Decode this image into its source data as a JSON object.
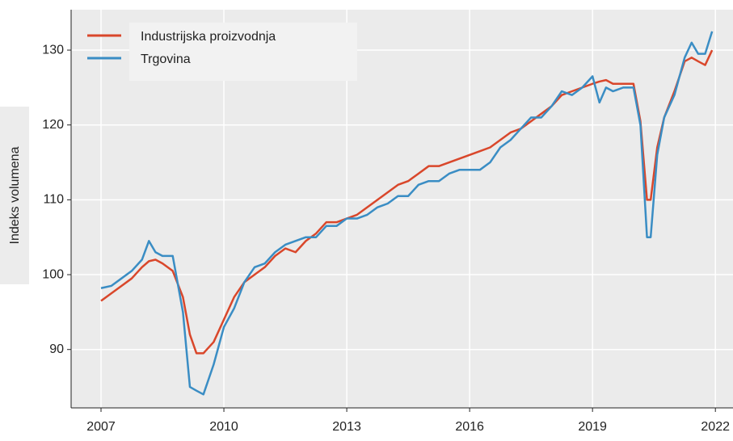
{
  "chart_data": {
    "type": "line",
    "y_label": "Indeks volumena",
    "x": [
      2007,
      2007.25,
      2007.5,
      2007.75,
      2008,
      2008.17,
      2008.33,
      2008.5,
      2008.75,
      2009,
      2009.17,
      2009.33,
      2009.5,
      2009.75,
      2010,
      2010.25,
      2010.5,
      2010.75,
      2011,
      2011.25,
      2011.5,
      2011.75,
      2012,
      2012.25,
      2012.5,
      2012.75,
      2013,
      2013.25,
      2013.5,
      2013.75,
      2014,
      2014.25,
      2014.5,
      2014.75,
      2015,
      2015.25,
      2015.5,
      2015.75,
      2016,
      2016.25,
      2016.5,
      2016.75,
      2017,
      2017.25,
      2017.5,
      2017.75,
      2018,
      2018.25,
      2018.5,
      2018.75,
      2019,
      2019.17,
      2019.33,
      2019.5,
      2019.75,
      2020,
      2020.17,
      2020.33,
      2020.42,
      2020.58,
      2020.75,
      2021,
      2021.25,
      2021.42,
      2021.58,
      2021.75,
      2021.92
    ],
    "series": [
      {
        "name": "Industrijska proizvodnja",
        "color": "#d9472b",
        "values": [
          96.5,
          97.5,
          98.5,
          99.5,
          101,
          101.8,
          102,
          101.5,
          100.5,
          97,
          92,
          89.5,
          89.5,
          91,
          94,
          97,
          99,
          100,
          101,
          102.5,
          103.5,
          103,
          104.5,
          105.5,
          107,
          107,
          107.5,
          108,
          109,
          110,
          111,
          112,
          112.5,
          113.5,
          114.5,
          114.5,
          115,
          115.5,
          116,
          116.5,
          117,
          118,
          119,
          119.5,
          120.5,
          121.5,
          122.5,
          124,
          124.5,
          125,
          125.5,
          125.8,
          126,
          125.5,
          125.5,
          125.5,
          120.5,
          110,
          110,
          117,
          121,
          124.5,
          128.5,
          129,
          128.5,
          128,
          130
        ]
      },
      {
        "name": "Trgovina",
        "color": "#3a8dc4",
        "values": [
          98.2,
          98.5,
          99.5,
          100.5,
          102,
          104.5,
          103,
          102.5,
          102.5,
          95,
          85,
          84.5,
          84,
          88,
          93,
          95.5,
          99,
          101,
          101.5,
          103,
          104,
          104.5,
          105,
          105,
          106.5,
          106.5,
          107.5,
          107.5,
          108,
          109,
          109.5,
          110.5,
          110.5,
          112,
          112.5,
          112.5,
          113.5,
          114,
          114,
          114,
          115,
          117,
          118,
          119.5,
          121,
          121,
          122.5,
          124.5,
          124,
          125,
          126.5,
          123,
          125,
          124.5,
          125,
          125,
          120,
          105,
          105,
          116,
          121,
          124,
          129,
          131,
          129.5,
          129.5,
          132.5
        ]
      }
    ],
    "xlim": [
      2006.27,
      2022.43
    ],
    "xticks": [
      2007,
      2010,
      2013,
      2016,
      2019,
      2022
    ],
    "ylim": [
      82.2,
      135.4
    ],
    "yticks": [
      90,
      100,
      110,
      120,
      130
    ],
    "grid": true,
    "legend": "upper left"
  }
}
